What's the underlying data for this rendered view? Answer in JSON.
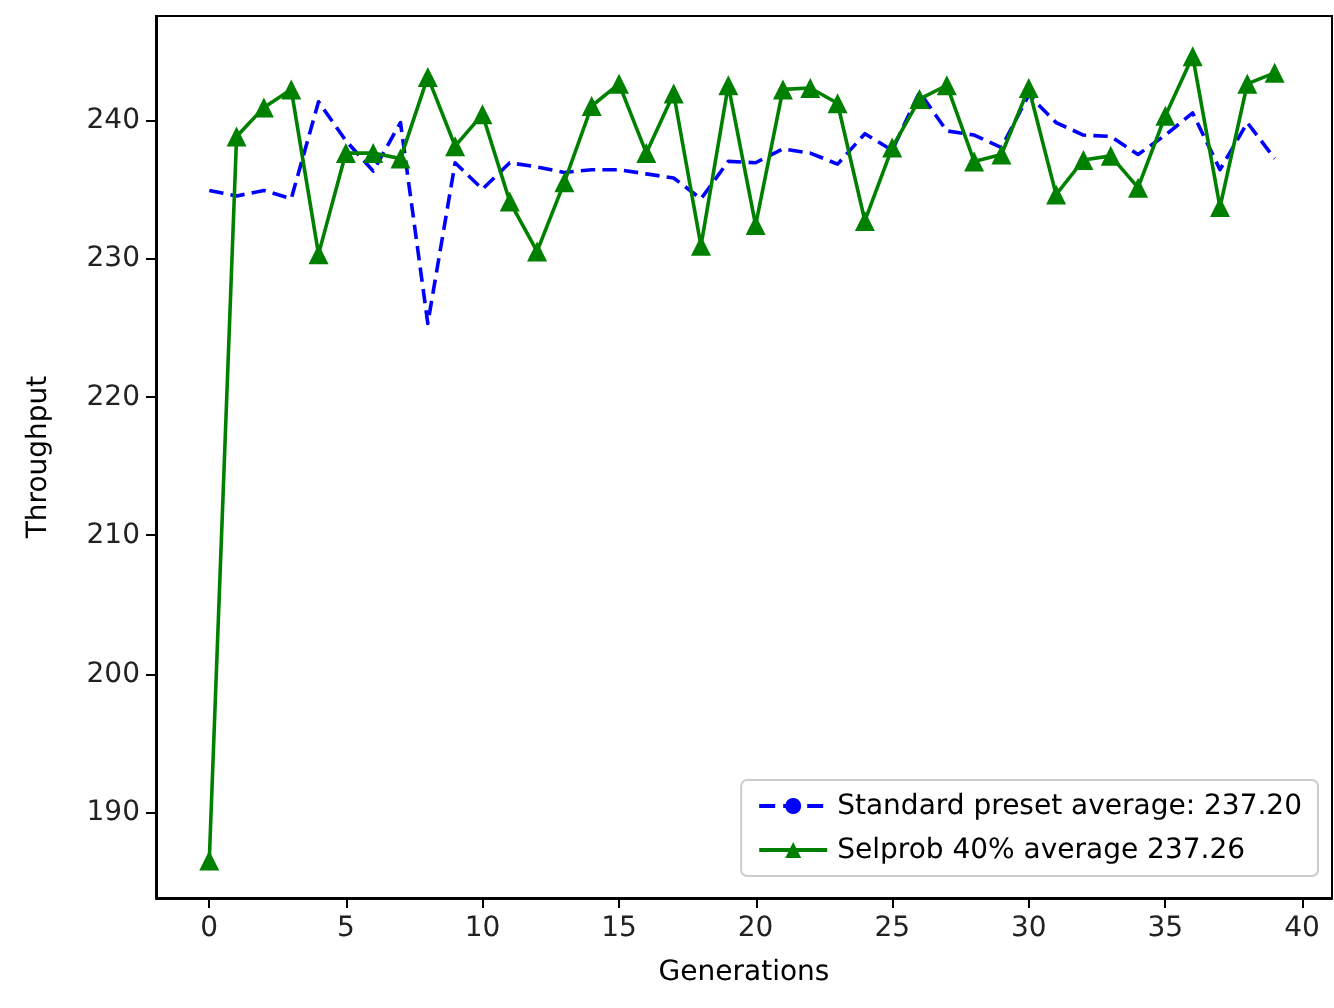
{
  "chart_data": {
    "type": "line",
    "xlabel": "Generations",
    "ylabel": "Throughput",
    "x": [
      0,
      1,
      2,
      3,
      4,
      5,
      6,
      7,
      8,
      9,
      10,
      11,
      12,
      13,
      14,
      15,
      16,
      17,
      18,
      19,
      20,
      21,
      22,
      23,
      24,
      25,
      26,
      27,
      28,
      29,
      30,
      31,
      32,
      33,
      34,
      35,
      36,
      37,
      38,
      39
    ],
    "series": [
      {
        "name": "Standard preset average: 237.20",
        "color": "#0000ff",
        "line_style": "dashed",
        "marker": "none",
        "values": [
          234.9,
          234.5,
          234.9,
          234.3,
          241.3,
          238.5,
          236.3,
          239.8,
          225.3,
          236.9,
          235.0,
          236.9,
          236.6,
          236.2,
          236.4,
          236.4,
          236.1,
          235.8,
          234.3,
          237.0,
          236.9,
          237.9,
          237.6,
          236.8,
          239.0,
          237.8,
          242.0,
          239.2,
          238.9,
          238.0,
          241.8,
          239.8,
          238.9,
          238.8,
          237.5,
          238.9,
          240.5,
          236.4,
          239.8,
          237.2
        ]
      },
      {
        "name": "Selprob 40% average 237.26",
        "color": "#008000",
        "line_style": "solid",
        "marker": "triangle",
        "values": [
          186.5,
          238.8,
          240.9,
          242.2,
          230.3,
          237.6,
          237.6,
          237.2,
          243.1,
          238.1,
          240.4,
          234.1,
          230.5,
          235.5,
          241.0,
          242.6,
          237.6,
          241.9,
          230.9,
          242.5,
          232.4,
          242.2,
          242.3,
          241.2,
          232.7,
          238.0,
          241.5,
          242.5,
          237.0,
          237.5,
          242.3,
          234.6,
          237.1,
          237.4,
          235.1,
          240.3,
          244.6,
          233.7,
          242.6,
          243.4
        ]
      }
    ],
    "xlim": [
      -1.95,
      41.1
    ],
    "xticks": [
      0,
      5,
      10,
      15,
      20,
      25,
      30,
      35,
      40
    ],
    "ylim": [
      183.8,
      247.5
    ],
    "yticks": [
      190,
      200,
      210,
      220,
      230,
      240
    ],
    "grid": false,
    "legend": "bottom right"
  }
}
